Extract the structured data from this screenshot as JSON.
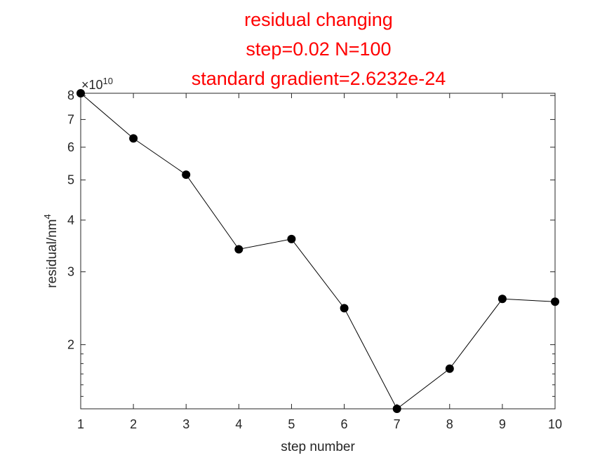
{
  "chart_data": {
    "type": "line",
    "title_lines": [
      "residual changing",
      "step=0.02 N=100",
      "standard gradient=2.6232e-24"
    ],
    "xlabel": "step number",
    "ylabel": "residual/nm",
    "ylabel_superscript": "4",
    "y_exponent_prefix": "×10",
    "y_exponent_power": "10",
    "y_scale": "log",
    "xlim": [
      1,
      10
    ],
    "ylim": [
      14000000000,
      81000000000
    ],
    "x_ticks": [
      "1",
      "2",
      "3",
      "4",
      "5",
      "6",
      "7",
      "8",
      "9",
      "10"
    ],
    "y_ticks": [
      {
        "value": 20000000000,
        "label": "2"
      },
      {
        "value": 30000000000,
        "label": "3"
      },
      {
        "value": 40000000000,
        "label": "4"
      },
      {
        "value": 50000000000,
        "label": "5"
      },
      {
        "value": 60000000000,
        "label": "6"
      },
      {
        "value": 70000000000,
        "label": "7"
      },
      {
        "value": 80000000000,
        "label": "8"
      }
    ],
    "grid": false,
    "series": [
      {
        "x": [
          1,
          2,
          3,
          4,
          5,
          6,
          7,
          8,
          9,
          10
        ],
        "values": [
          81000000000,
          63000000000,
          51500000000,
          34000000000,
          36000000000,
          24500000000,
          14000000000,
          17500000000,
          25800000000,
          25400000000
        ],
        "color": "#000000",
        "marker": "filled-circle"
      }
    ]
  }
}
